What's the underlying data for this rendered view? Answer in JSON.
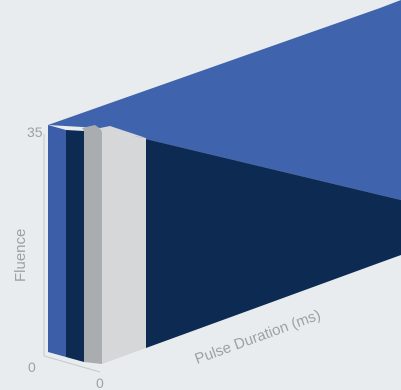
{
  "chart_data": {
    "type": "bar",
    "view": "3d-perspective",
    "xlabel": "Pulse Duration (ms)",
    "ylabel": "Fluence",
    "y_max_label": "35",
    "origin_labels": [
      "0",
      "0"
    ],
    "colors": {
      "background": "#e8ecee",
      "wall_top": "#3f63ad",
      "wall_face": "#3c5ea8",
      "wall_dark": "#0d2a52",
      "light_gray": "#d5d7d9",
      "mid_gray": "#a9adb0",
      "axis": "#c4c9cd"
    }
  }
}
